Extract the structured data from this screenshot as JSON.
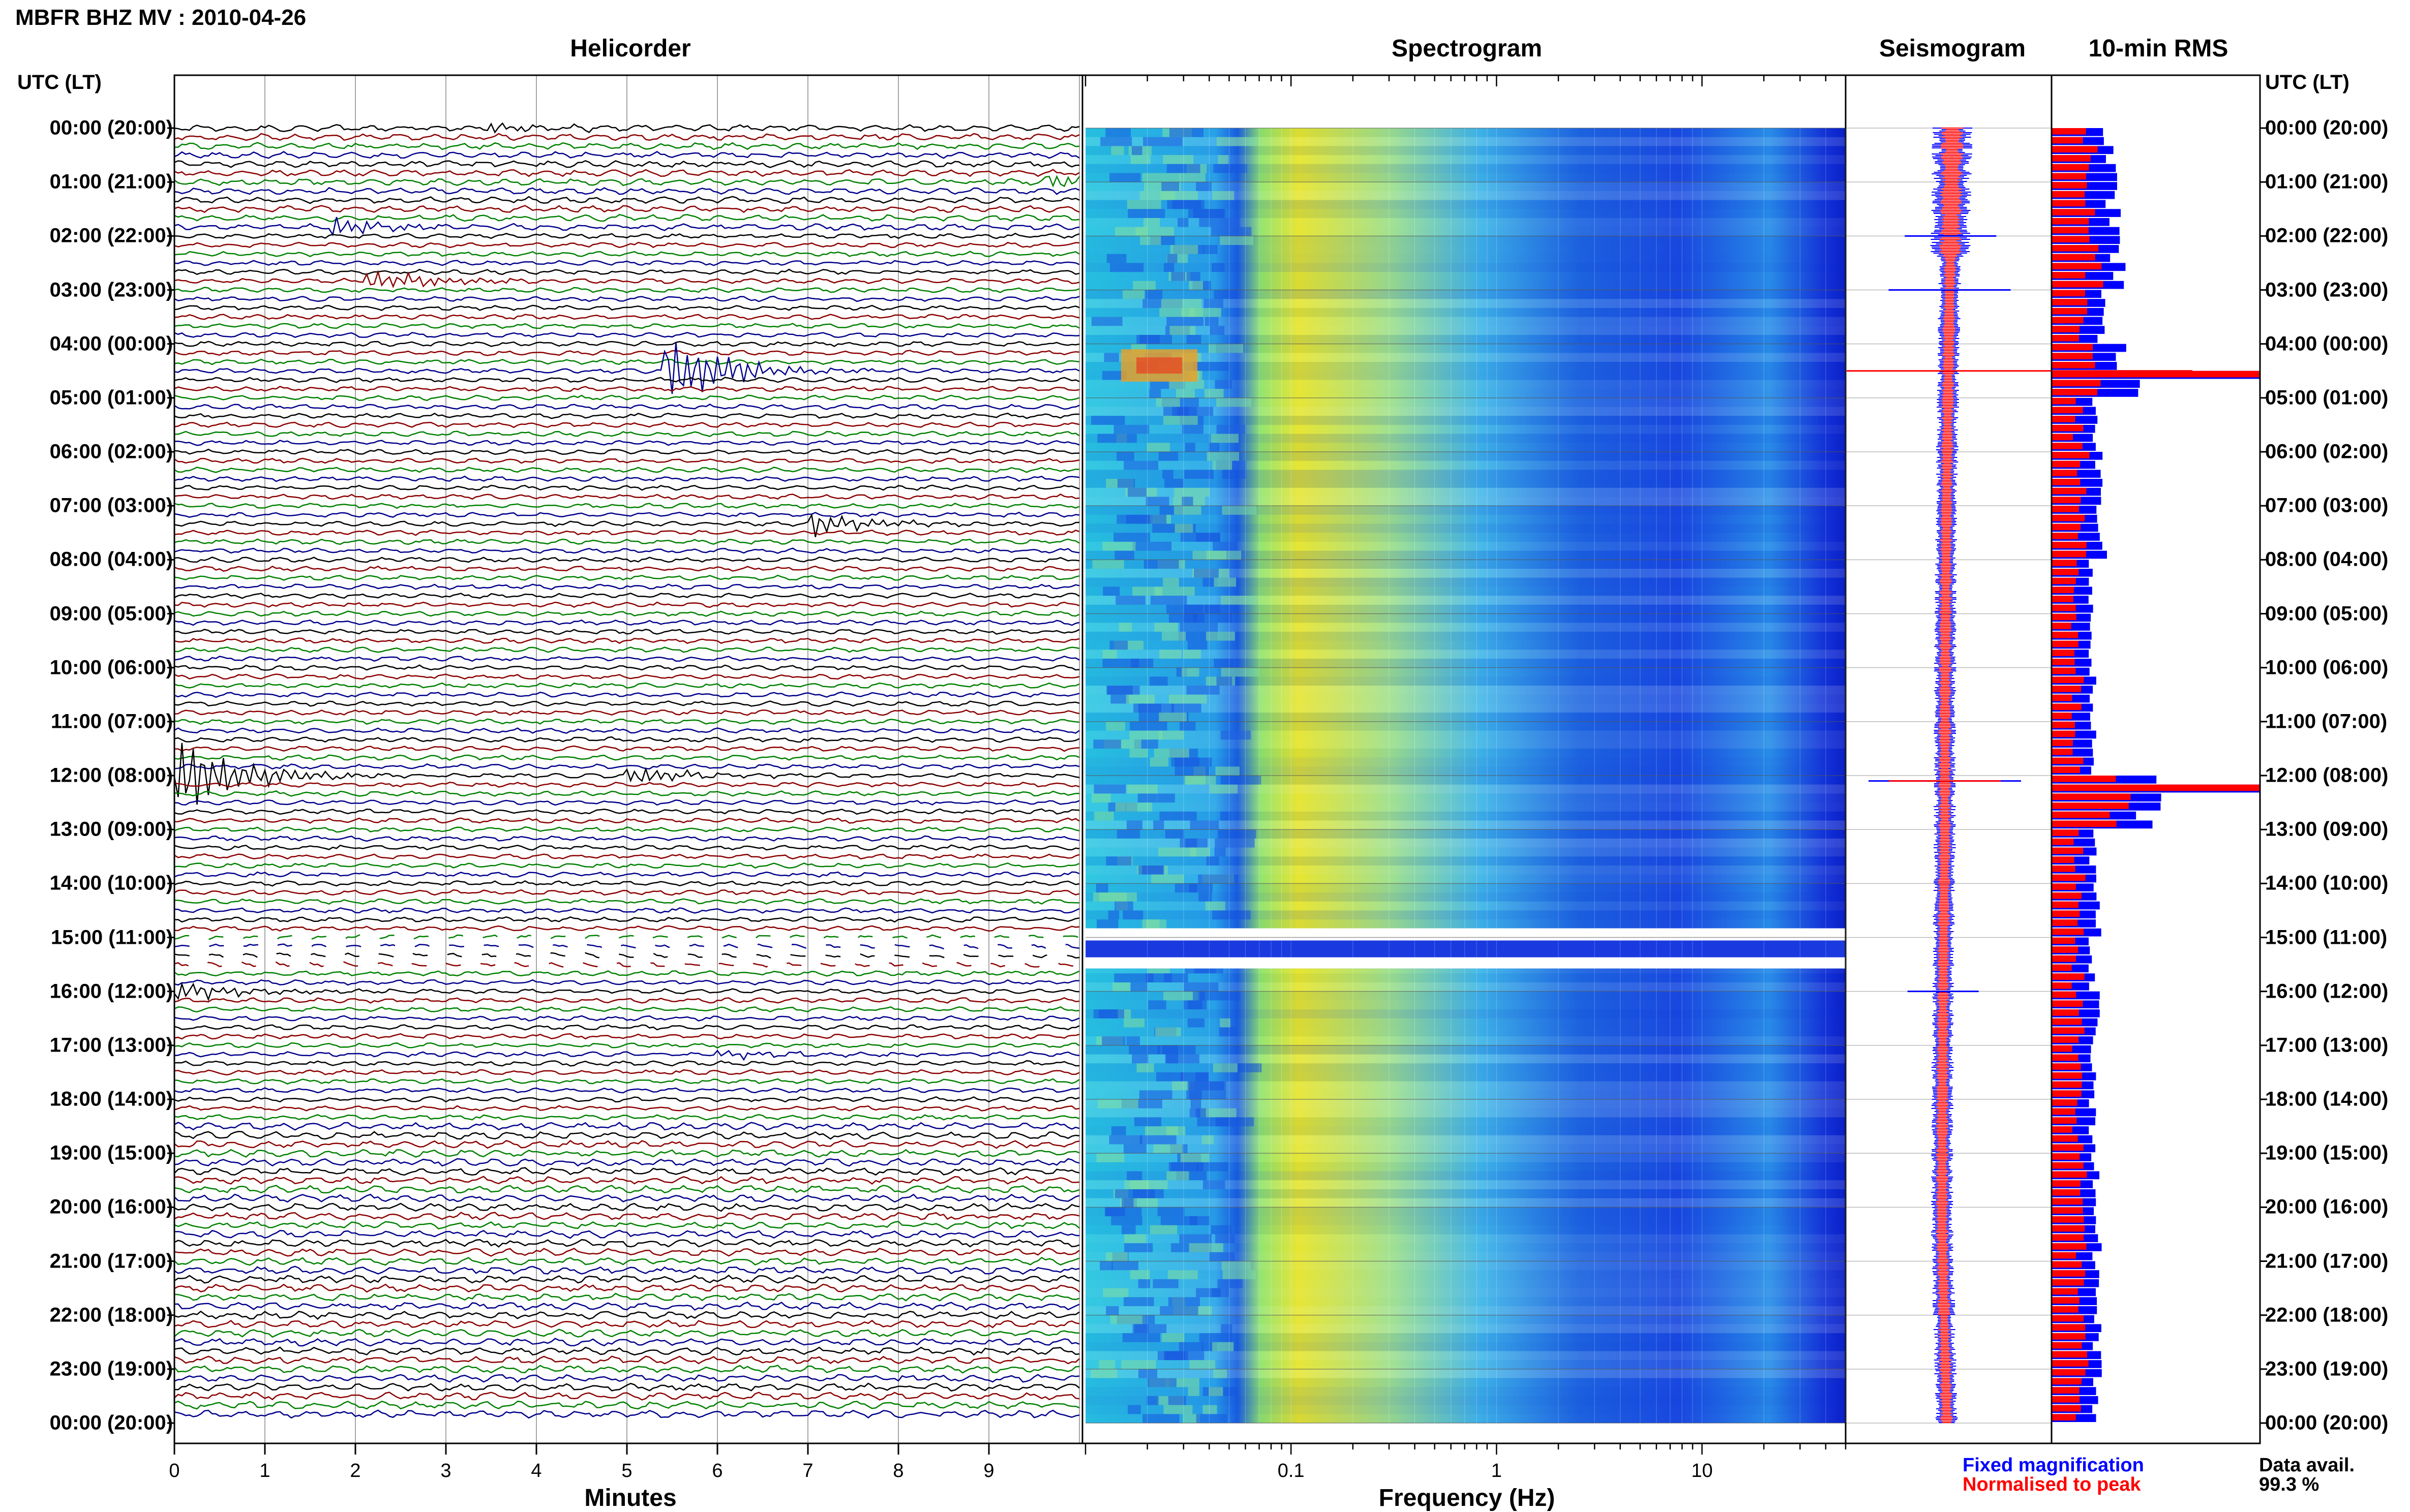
{
  "header": {
    "title": "MBFR BHZ MV : 2010-04-26",
    "utc_lt_left": "UTC (LT)",
    "utc_lt_right": "UTC (LT)"
  },
  "panels": {
    "helicorder": "Helicorder",
    "spectrogram": "Spectrogram",
    "seismogram": "Seismogram",
    "rms": "10-min RMS"
  },
  "hour_labels": [
    "00:00 (20:00)",
    "01:00 (21:00)",
    "02:00 (22:00)",
    "03:00 (23:00)",
    "04:00 (00:00)",
    "05:00 (01:00)",
    "06:00 (02:00)",
    "07:00 (03:00)",
    "08:00 (04:00)",
    "09:00 (05:00)",
    "10:00 (06:00)",
    "11:00 (07:00)",
    "12:00 (08:00)",
    "13:00 (09:00)",
    "14:00 (10:00)",
    "15:00 (11:00)",
    "16:00 (12:00)",
    "17:00 (13:00)",
    "18:00 (14:00)",
    "19:00 (15:00)",
    "20:00 (16:00)",
    "21:00 (17:00)",
    "22:00 (18:00)",
    "23:00 (19:00)",
    "00:00 (20:00)"
  ],
  "helicorder_axis": {
    "ticks": [
      "0",
      "1",
      "2",
      "3",
      "4",
      "5",
      "6",
      "7",
      "8",
      "9"
    ],
    "xlabel": "Minutes"
  },
  "spectrogram_axis": {
    "ticks": [
      "0.1",
      "1",
      "10"
    ],
    "xlabel": "Frequency (Hz)"
  },
  "legend": {
    "fixed": "Fixed magnification",
    "normalised": "Normalised to peak",
    "fixed_color": "#0000ff",
    "normalised_color": "#ff0000",
    "data_avail_label": "Data avail.",
    "data_avail_value": "99.3 %"
  },
  "colors": {
    "trace_cycle": [
      "#000000",
      "#8b0000",
      "#008000",
      "#00008b"
    ],
    "spectrogram_low": "#0a1fd6",
    "spectrogram_mid": "#22c8e6",
    "spectrogram_high": "#f0e020"
  },
  "chart_data": [
    {
      "type": "line",
      "title": "Helicorder",
      "xlabel": "Minutes",
      "xlim": [
        0,
        10
      ],
      "rows": 144,
      "events": [
        {
          "time": "00:00 (20:00)",
          "row": 0,
          "minute": 3.5,
          "amp": 0.4
        },
        {
          "time": "01:00 (21:00)",
          "row": 6,
          "minute": 9.6,
          "amp": 0.6
        },
        {
          "time": "02:00 (22:00)",
          "row": 11,
          "minute": 1.7,
          "amp": 0.9
        },
        {
          "time": "03:00 (23:00)",
          "row": 17,
          "minute": 2.1,
          "amp": 1.2
        },
        {
          "time": "04:00 (00:00)",
          "row": 27,
          "minute": 5.4,
          "amp": 3.5
        },
        {
          "time": "07:00 (03:00)",
          "row": 44,
          "minute": 7.0,
          "amp": 1.2
        },
        {
          "time": "12:00 (08:00)",
          "row": 72,
          "minute": 0.0,
          "amp": 4.0
        },
        {
          "time": "12:00 (08:00)",
          "row": 72,
          "minute": 5.0,
          "amp": 0.8
        },
        {
          "time": "16:00 (12:00)",
          "row": 96,
          "minute": 0.0,
          "amp": 1.0
        },
        {
          "time": "17:00 (13:00)",
          "row": 103,
          "minute": 6.0,
          "amp": 0.4
        },
        {
          "time": "23:00 (19:00)",
          "row": 139,
          "minute": 8.0,
          "amp": 0.3
        }
      ],
      "gap": {
        "start": "15:00 (11:00)",
        "end": "15:30 (11:30)"
      }
    },
    {
      "type": "heatmap",
      "title": "Spectrogram",
      "xlabel": "Frequency (Hz)",
      "xscale": "log",
      "xlim": [
        0.01,
        50
      ],
      "peak_band_hz": [
        0.13,
        0.5
      ],
      "gap": {
        "start": "15:00 (11:00)",
        "end": "15:30 (11:30)"
      }
    },
    {
      "type": "line",
      "title": "Seismogram",
      "series": [
        {
          "name": "Fixed magnification",
          "color": "#0000ff"
        },
        {
          "name": "Normalised to peak",
          "color": "#ff0000"
        }
      ]
    },
    {
      "type": "bar",
      "title": "10-min RMS",
      "series": [
        {
          "name": "Fixed magnification",
          "color": "#0000ff"
        },
        {
          "name": "Normalised to peak",
          "color": "#ff0000"
        }
      ],
      "hourly_rms": [
        0.45,
        0.5,
        0.6,
        0.35,
        0.7,
        0.25,
        0.3,
        0.35,
        0.2,
        0.22,
        0.22,
        0.22,
        0.95,
        0.22,
        0.28,
        0.22,
        0.3,
        0.22,
        0.22,
        0.25,
        0.28,
        0.3,
        0.28,
        0.28
      ],
      "peaks": [
        {
          "time": "04:30 (00:30)",
          "value": 1.0
        },
        {
          "time": "12:10 (08:10)",
          "value": 1.0
        }
      ]
    }
  ]
}
